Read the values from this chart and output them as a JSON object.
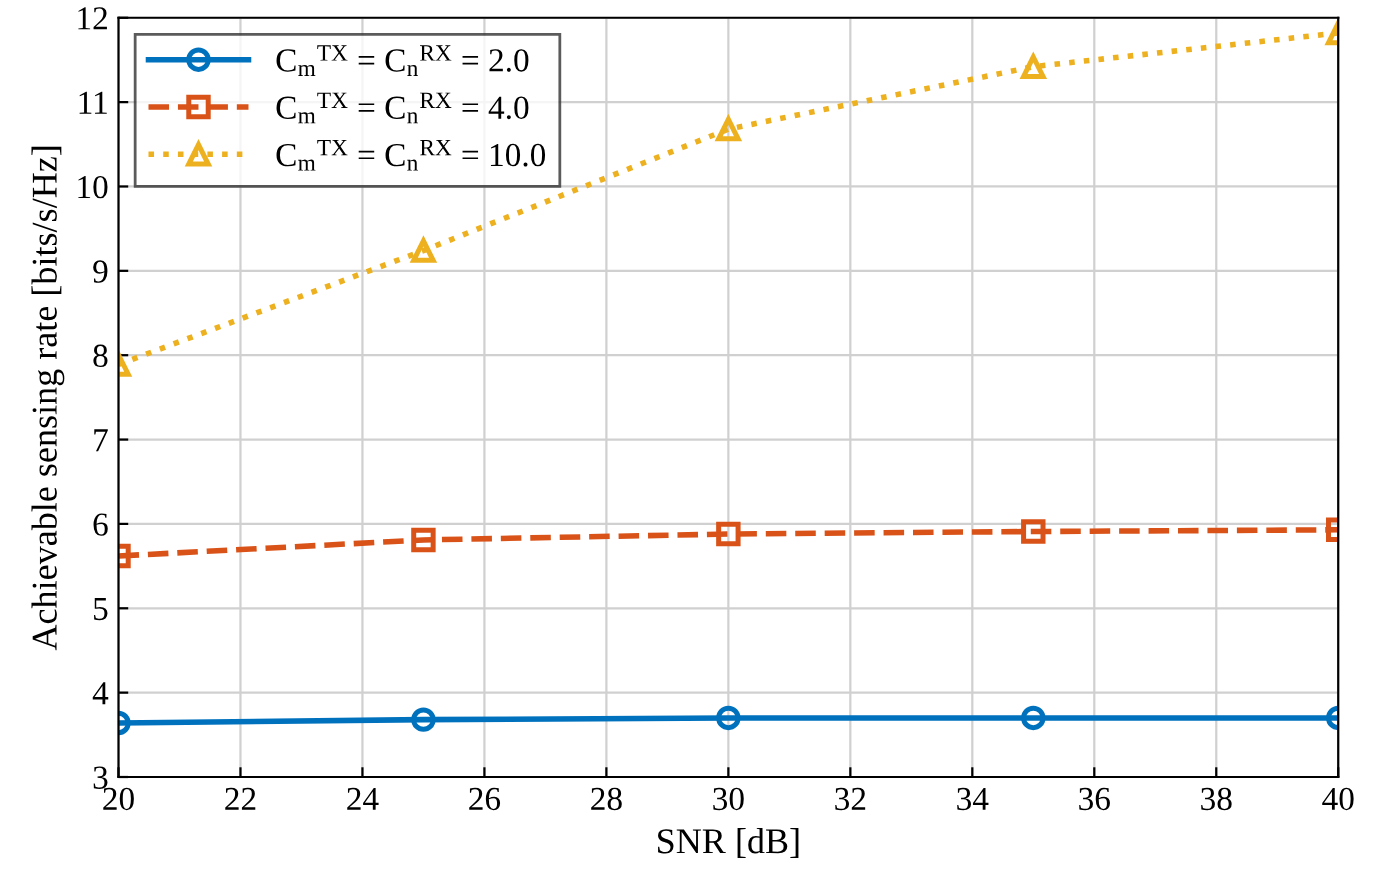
{
  "chart_data": {
    "type": "line",
    "xlabel": "SNR [dB]",
    "ylabel": "Achievable sensing rate [bits/s/Hz]",
    "x": [
      20,
      25,
      30,
      35,
      40
    ],
    "series": [
      {
        "name": "C$_{m}$$^{TX}$ = C$_{n}$$^{RX}$ = 2.0",
        "color": "#0072bd",
        "marker": "circle",
        "line_style": "solid",
        "values": [
          3.64,
          3.68,
          3.7,
          3.7,
          3.7
        ]
      },
      {
        "name": "C$_{m}$$^{TX}$ = C$_{n}$$^{RX}$ = 4.0",
        "color": "#d95319",
        "marker": "square",
        "line_style": "dashed",
        "values": [
          5.62,
          5.81,
          5.88,
          5.91,
          5.93
        ]
      },
      {
        "name": "C$_{m}$$^{TX}$ = C$_{n}$$^{RX}$ = 10.0",
        "color": "#edb120",
        "marker": "triangle",
        "line_style": "dotted",
        "values": [
          7.89,
          9.24,
          10.68,
          11.42,
          11.82
        ]
      }
    ],
    "xlim": [
      20,
      40
    ],
    "xticks": [
      20,
      22,
      24,
      26,
      28,
      30,
      32,
      34,
      36,
      38,
      40
    ],
    "ylim": [
      3,
      12
    ],
    "yticks": [
      3,
      4,
      5,
      6,
      7,
      8,
      9,
      10,
      11,
      12
    ],
    "grid": true,
    "legend": "top left"
  }
}
